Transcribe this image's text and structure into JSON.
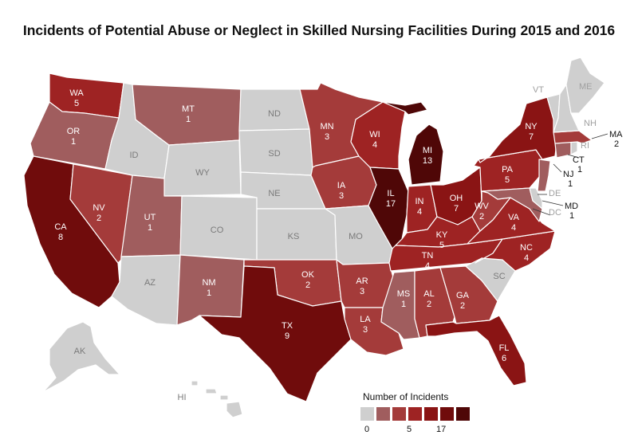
{
  "title": "Incidents of Potential Abuse or Neglect in Skilled Nursing Facilities During 2015 and 2016",
  "colors": {
    "none": "#cfcfcf",
    "c1": "#a05d5e",
    "c2": "#a43b3a",
    "c3": "#9e2323",
    "c4": "#8a1414",
    "c5": "#700c0c",
    "c6": "#4f0707"
  },
  "legend": {
    "title": "Number of Incidents",
    "labels": [
      "0",
      "5",
      "17"
    ]
  },
  "states": {
    "WA": {
      "name": "WA",
      "value": "5"
    },
    "OR": {
      "name": "OR",
      "value": "1"
    },
    "CA": {
      "name": "CA",
      "value": "8"
    },
    "NV": {
      "name": "NV",
      "value": "2"
    },
    "ID": {
      "name": "ID"
    },
    "MT": {
      "name": "MT",
      "value": "1"
    },
    "WY": {
      "name": "WY"
    },
    "UT": {
      "name": "UT",
      "value": "1"
    },
    "AZ": {
      "name": "AZ"
    },
    "CO": {
      "name": "CO"
    },
    "NM": {
      "name": "NM",
      "value": "1"
    },
    "ND": {
      "name": "ND"
    },
    "SD": {
      "name": "SD"
    },
    "NE": {
      "name": "NE"
    },
    "KS": {
      "name": "KS"
    },
    "OK": {
      "name": "OK",
      "value": "2"
    },
    "TX": {
      "name": "TX",
      "value": "9"
    },
    "MN": {
      "name": "MN",
      "value": "3"
    },
    "IA": {
      "name": "IA",
      "value": "3"
    },
    "MO": {
      "name": "MO"
    },
    "AR": {
      "name": "AR",
      "value": "3"
    },
    "LA": {
      "name": "LA",
      "value": "3"
    },
    "WI": {
      "name": "WI",
      "value": "4"
    },
    "IL": {
      "name": "IL",
      "value": "17"
    },
    "MI": {
      "name": "MI",
      "value": "13"
    },
    "IN": {
      "name": "IN",
      "value": "4"
    },
    "OH": {
      "name": "OH",
      "value": "7"
    },
    "KY": {
      "name": "KY",
      "value": "5"
    },
    "TN": {
      "name": "TN",
      "value": "4"
    },
    "MS": {
      "name": "MS",
      "value": "1"
    },
    "AL": {
      "name": "AL",
      "value": "2"
    },
    "GA": {
      "name": "GA",
      "value": "2"
    },
    "FL": {
      "name": "FL",
      "value": "6"
    },
    "SC": {
      "name": "SC"
    },
    "NC": {
      "name": "NC",
      "value": "4"
    },
    "VA": {
      "name": "VA",
      "value": "4"
    },
    "WV": {
      "name": "WV",
      "value": "2"
    },
    "PA": {
      "name": "PA",
      "value": "5"
    },
    "NY": {
      "name": "NY",
      "value": "7"
    },
    "NJ": {
      "name": "NJ",
      "value": "1"
    },
    "MD": {
      "name": "MD",
      "value": "1"
    },
    "DE": {
      "name": "DE"
    },
    "DC": {
      "name": "DC"
    },
    "CT": {
      "name": "CT",
      "value": "1"
    },
    "RI": {
      "name": "RI"
    },
    "MA": {
      "name": "MA",
      "value": "2"
    },
    "VT": {
      "name": "VT"
    },
    "NH": {
      "name": "NH"
    },
    "ME": {
      "name": "ME"
    },
    "AK": {
      "name": "AK"
    },
    "HI": {
      "name": "HI"
    }
  }
}
